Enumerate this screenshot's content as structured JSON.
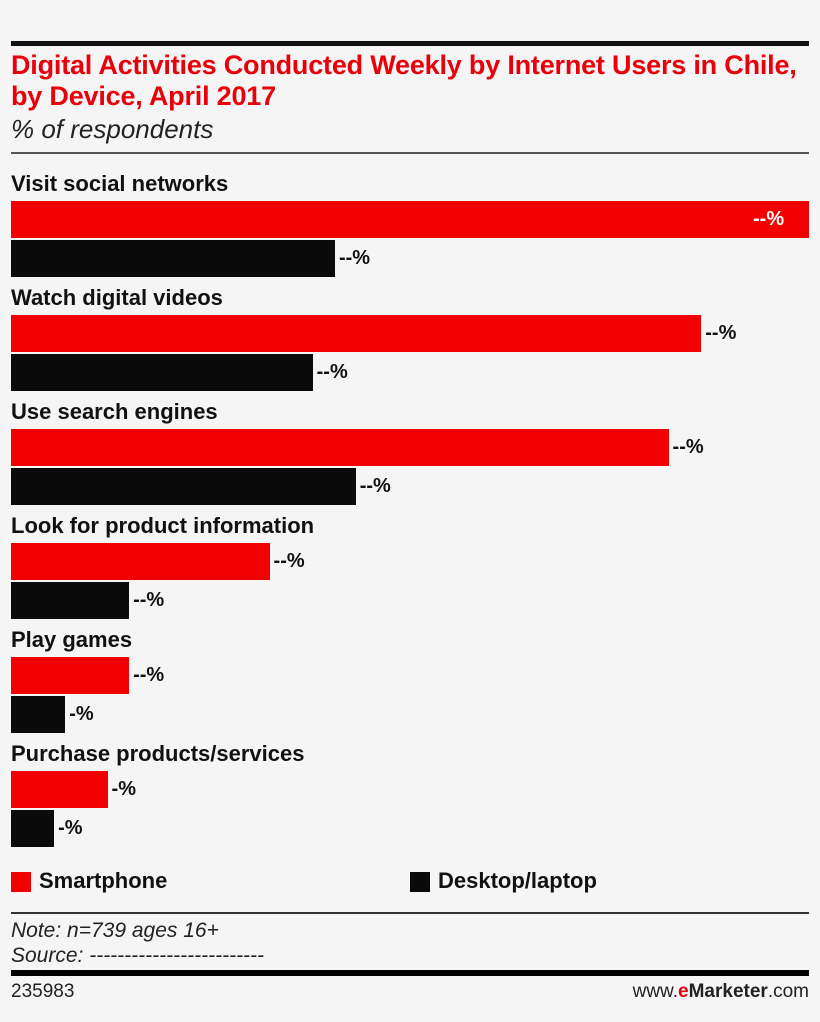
{
  "chart_data": {
    "type": "bar",
    "orientation": "horizontal",
    "title": "Digital Activities Conducted Weekly by Internet Users in Chile, by Device, April 2017",
    "subtitle": "% of respondents",
    "categories": [
      "Visit social networks",
      "Watch digital videos",
      "Use search engines",
      "Look for product information",
      "Play games",
      "Purchase products/services"
    ],
    "series": [
      {
        "name": "Smartphone",
        "color": "#f00000",
        "values": [
          100,
          86.5,
          82.4,
          32.4,
          14.8,
          12.1
        ],
        "labels": [
          "--%",
          "--%",
          "--%",
          "--%",
          "--%",
          "-%"
        ]
      },
      {
        "name": "Desktop/laptop",
        "color": "#0a0a0a",
        "values": [
          40.6,
          37.8,
          43.2,
          14.8,
          6.8,
          5.4
        ],
        "labels": [
          "--%",
          "--%",
          "--%",
          "--%",
          "-%",
          "-%"
        ]
      }
    ],
    "xlim": [
      0,
      100
    ],
    "grid": false,
    "legend_placement": "bottom"
  },
  "footer": {
    "note": "Note: n=739 ages 16+",
    "source": "Source: -------------------------",
    "chart_id": "235983",
    "brand_prefix": "www.",
    "brand_e": "e",
    "brand_name": "Marketer",
    "brand_suffix": ".com"
  },
  "colors": {
    "accent": "#e8000b",
    "smartphone": "#f00000",
    "desktop": "#0a0a0a"
  }
}
